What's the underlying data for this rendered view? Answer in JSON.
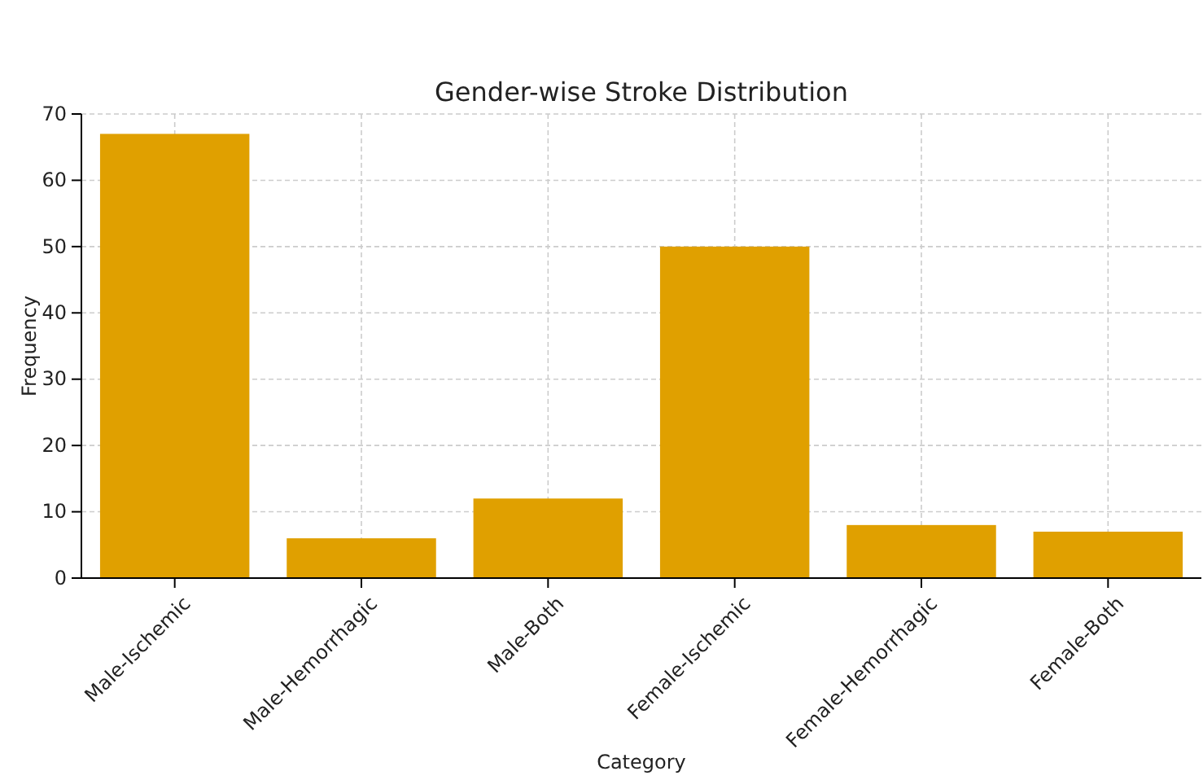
{
  "chart_data": {
    "type": "bar",
    "title": "Gender-wise Stroke Distribution",
    "xlabel": "Category",
    "ylabel": "Frequency",
    "categories": [
      "Male-Ischemic",
      "Male-Hemorrhagic",
      "Male-Both",
      "Female-Ischemic",
      "Female-Hemorrhagic",
      "Female-Both"
    ],
    "values": [
      67,
      6,
      12,
      50,
      8,
      7
    ],
    "color": "#e0a000",
    "ylim": [
      0,
      70
    ],
    "yticks": [
      0,
      10,
      20,
      30,
      40,
      50,
      60,
      70
    ],
    "grid": true
  }
}
